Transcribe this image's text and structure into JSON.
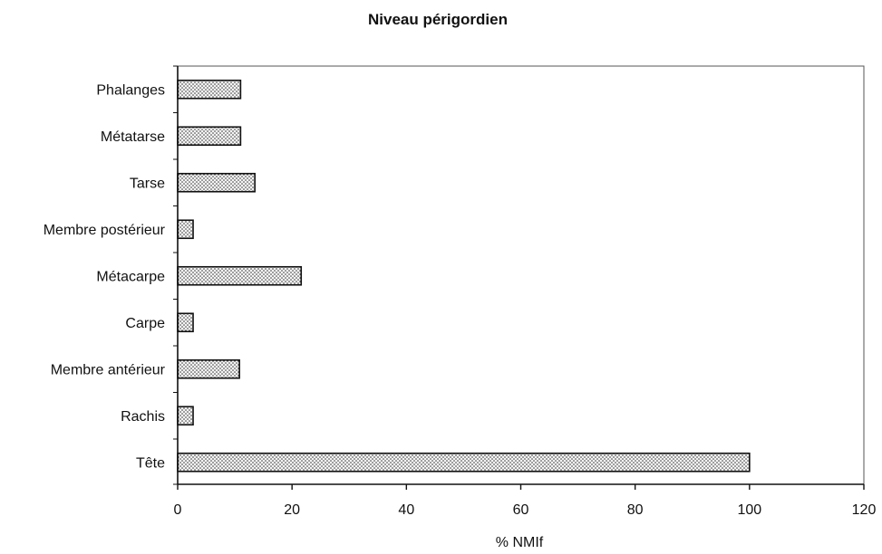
{
  "chart_data": {
    "type": "bar",
    "orientation": "horizontal",
    "title": "Niveau périgordien",
    "xlabel": "% NMIf",
    "ylabel": "",
    "xlim": [
      0,
      120
    ],
    "xticks": [
      0,
      20,
      40,
      60,
      80,
      100,
      120
    ],
    "xtick_labels": [
      "0",
      "20",
      "40",
      "60",
      "80",
      "100",
      "120"
    ],
    "grid": false,
    "legend": "none",
    "categories": [
      "Phalanges",
      "Métatarse",
      "Tarse",
      "Membre postérieur",
      "Métacarpe",
      "Carpe",
      "Membre antérieur",
      "Rachis",
      "Tête"
    ],
    "values": [
      11,
      11,
      13.5,
      2.7,
      21.6,
      2.7,
      10.8,
      2.7,
      100
    ],
    "bar_pattern": "stippled",
    "colors": {
      "bar_fill": "#f4f4f4",
      "bar_dots": "#2a2a2a",
      "bar_stroke": "#111111",
      "axis": "#111111",
      "frame": "#555555"
    }
  }
}
